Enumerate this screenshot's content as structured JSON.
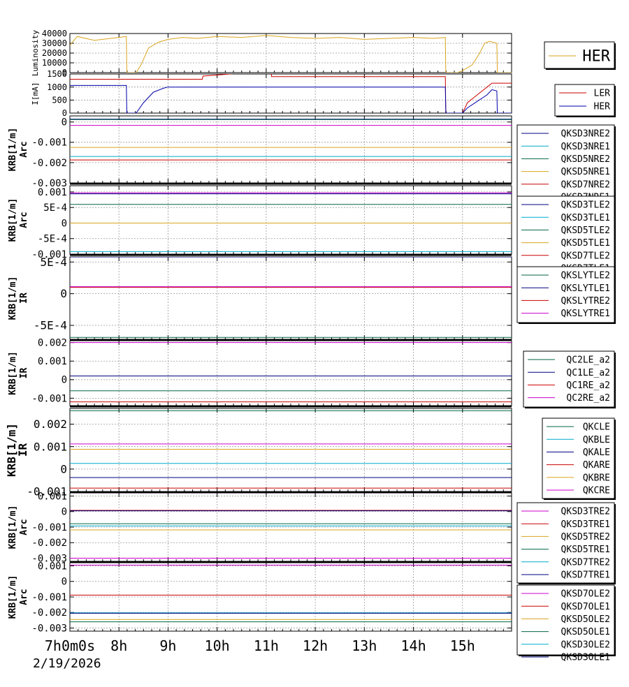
{
  "time_axis": {
    "start_label": "7h0m0s",
    "start_date": "2/19/2026",
    "ticks": [
      {
        "hour": 7,
        "label": "7h0m0s"
      },
      {
        "hour": 8,
        "label": "8h"
      },
      {
        "hour": 9,
        "label": "9h"
      },
      {
        "hour": 10,
        "label": "10h"
      },
      {
        "hour": 11,
        "label": "11h"
      },
      {
        "hour": 12,
        "label": "12h"
      },
      {
        "hour": 13,
        "label": "13h"
      },
      {
        "hour": 14,
        "label": "14h"
      },
      {
        "hour": 15,
        "label": "15h"
      }
    ],
    "range_hours": [
      7,
      16
    ]
  },
  "chart_data": [
    {
      "type": "line",
      "ylabel": "Luminosity",
      "ylim": [
        0,
        40000
      ],
      "yticks": [
        "40000",
        "30000",
        "20000",
        "10000",
        "0"
      ],
      "grid": true,
      "legend_position": "right",
      "series": [
        {
          "name": "HER",
          "color": "#daa520",
          "x": [
            7.0,
            7.15,
            7.5,
            8.0,
            8.15,
            8.16,
            8.35,
            8.45,
            8.6,
            8.8,
            9.0,
            9.3,
            9.6,
            10.0,
            10.5,
            11.0,
            11.5,
            12.0,
            12.5,
            13.0,
            13.5,
            14.0,
            14.4,
            14.65,
            14.66,
            14.9,
            15.0,
            15.2,
            15.35,
            15.45,
            15.55,
            15.7,
            15.71,
            16.0
          ],
          "y": [
            28000,
            37000,
            33000,
            36000,
            37000,
            0,
            0,
            8000,
            25000,
            31000,
            34000,
            36000,
            35000,
            37000,
            36000,
            38000,
            36000,
            35000,
            36000,
            34000,
            35000,
            36000,
            35000,
            36000,
            0,
            0,
            2000,
            8000,
            20000,
            30000,
            32000,
            30000,
            0,
            0
          ]
        }
      ]
    },
    {
      "type": "line",
      "ylabel": "I[mA]",
      "ylim": [
        0,
        1500
      ],
      "yticks": [
        "1500",
        "1000",
        "500",
        "0"
      ],
      "grid": true,
      "legend_position": "right",
      "series": [
        {
          "name": "LER",
          "color": "#cc0000",
          "x": [
            7.0,
            9.7,
            9.71,
            10.0,
            10.5,
            11.0,
            11.1,
            11.11,
            14.65,
            14.66,
            15.0,
            15.1,
            15.3,
            15.5,
            15.6,
            16.0
          ],
          "y": [
            1300,
            1300,
            1420,
            1460,
            1540,
            1600,
            1600,
            1400,
            1400,
            0,
            0,
            400,
            700,
            1000,
            1150,
            1150
          ]
        },
        {
          "name": "HER",
          "color": "#0000aa",
          "x": [
            7.0,
            8.15,
            8.16,
            8.35,
            8.5,
            8.7,
            8.9,
            9.0,
            9.5,
            10.0,
            11.0,
            12.0,
            13.0,
            14.0,
            14.65,
            14.66,
            15.0,
            15.1,
            15.3,
            15.5,
            15.6,
            15.7,
            15.71,
            16.0
          ],
          "y": [
            1060,
            1060,
            0,
            0,
            400,
            800,
            950,
            1000,
            1000,
            1000,
            1000,
            1000,
            1000,
            1000,
            1000,
            0,
            0,
            200,
            450,
            700,
            900,
            850,
            0,
            0
          ]
        }
      ]
    },
    {
      "type": "line",
      "ylabel": "KRB[1/m]",
      "ylabel2": "Arc",
      "ylim": [
        -0.003,
        0.0003
      ],
      "yticks": [
        "0",
        "-0.001",
        "-0.002",
        "-0.003"
      ],
      "grid": true,
      "legend_position": "right",
      "series": [
        {
          "name": "QKSD3NRE2",
          "color": "#000080",
          "y_const": 0.00014
        },
        {
          "name": "QKSD3NRE1",
          "color": "#00aacc",
          "y_const": -0.0017
        },
        {
          "name": "QKSD5NRE2",
          "color": "#006644",
          "y_const": 0.00012
        },
        {
          "name": "QKSD5NRE1",
          "color": "#daa520",
          "y_const": -0.00125
        },
        {
          "name": "QKSD7NRE2",
          "color": "#cc0000",
          "y_const": -0.00187
        },
        {
          "name": "QKSD7NRE1",
          "color": "#cc00cc",
          "y_const": -0.00017
        }
      ]
    },
    {
      "type": "line",
      "ylabel": "KRB[1/m]",
      "ylabel2": "Arc",
      "ylim": [
        -0.001,
        0.0012
      ],
      "yticks": [
        "0.001",
        "5E-4",
        "0",
        "-5E-4",
        "-0.001"
      ],
      "grid": true,
      "legend_position": "right",
      "series": [
        {
          "name": "QKSD3TLE2",
          "color": "#000080",
          "y_const": 0.00094
        },
        {
          "name": "QKSD3TLE1",
          "color": "#00aacc",
          "y_const": -0.00092
        },
        {
          "name": "QKSD5TLE2",
          "color": "#006644",
          "y_const": 0.0006
        },
        {
          "name": "QKSD5TLE1",
          "color": "#daa520",
          "y_const": 0.0
        },
        {
          "name": "QKSD7TLE2",
          "color": "#cc0000",
          "y_const": 0.0013
        },
        {
          "name": "QKSD7TLE1",
          "color": "#cc00cc",
          "y_const": 0.00097
        }
      ]
    },
    {
      "type": "line",
      "ylabel": "KRB[1/m]",
      "ylabel2": "IR",
      "ylim": [
        -0.00072,
        0.00058
      ],
      "yticks": [
        "5E-4",
        "0",
        "-5E-4"
      ],
      "grid": true,
      "legend_position": "right",
      "series": [
        {
          "name": "QKSLYTLE2",
          "color": "#006644",
          "y_const": -0.00069
        },
        {
          "name": "QKSLYTLE1",
          "color": "#000080",
          "y_const": 0.00058
        },
        {
          "name": "QKSLYTRE2",
          "color": "#cc0000",
          "y_const": 0.0001
        },
        {
          "name": "QKSLYTRE1",
          "color": "#cc00cc",
          "y_const": 0.00011
        }
      ]
    },
    {
      "type": "line",
      "ylabel": "KRB[1/m]",
      "ylabel2": "IR",
      "ylim": [
        -0.0014,
        0.0021
      ],
      "yticks": [
        "0.002",
        "0.001",
        "0",
        "-0.001"
      ],
      "grid": true,
      "legend_position": "right",
      "series": [
        {
          "name": "QC2LE_a2",
          "color": "#006644",
          "y_const": -0.0006
        },
        {
          "name": "QC1LE_a2",
          "color": "#000080",
          "y_const": 0.0002
        },
        {
          "name": "QC1RE_a2",
          "color": "#cc0000",
          "y_const": -0.0012
        },
        {
          "name": "QC2RE_a2",
          "color": "#cc00cc",
          "y_const": 0.002
        }
      ]
    },
    {
      "type": "line",
      "ylabel": "KRB[1/m]",
      "ylabel2": "IR",
      "ylim": [
        -0.001,
        0.0027
      ],
      "yticks": [
        "0.002",
        "0.001",
        "0",
        "-0.001"
      ],
      "grid": true,
      "legend_position": "right",
      "series": [
        {
          "name": "QKCLE",
          "color": "#006644",
          "y_const": 0.0026
        },
        {
          "name": "QKBLE",
          "color": "#00aacc",
          "y_const": 0.00025
        },
        {
          "name": "QKALE",
          "color": "#000080",
          "y_const": -0.00038
        },
        {
          "name": "QKARE",
          "color": "#cc0000",
          "y_const": -0.00085
        },
        {
          "name": "QKBRE",
          "color": "#daa520",
          "y_const": 0.00088
        },
        {
          "name": "QKCRE",
          "color": "#cc00cc",
          "y_const": 0.00112
        }
      ]
    },
    {
      "type": "line",
      "ylabel": "KRB[1/m]",
      "ylabel2": "Arc",
      "ylim": [
        -0.0032,
        0.0012
      ],
      "yticks": [
        "0.001",
        "0",
        "-0.001",
        "-0.002",
        "-0.003"
      ],
      "grid": true,
      "legend_position": "right",
      "series": [
        {
          "name": "QKSD3TRE2",
          "color": "#cc00cc",
          "y_const": -0.003
        },
        {
          "name": "QKSD3TRE1",
          "color": "#cc0000",
          "y_const": 8e-05
        },
        {
          "name": "QKSD5TRE2",
          "color": "#daa520",
          "y_const": -0.00118
        },
        {
          "name": "QKSD5TRE1",
          "color": "#006644",
          "y_const": -0.00078
        },
        {
          "name": "QKSD7TRE2",
          "color": "#00aacc",
          "y_const": -0.00092
        },
        {
          "name": "QKSD7TRE1",
          "color": "#000080",
          "y_const": 5e-05
        }
      ]
    },
    {
      "type": "line",
      "ylabel": "KRB[1/m]",
      "ylabel2": "Arc",
      "ylim": [
        -0.0032,
        0.0012
      ],
      "yticks": [
        "0.001",
        "0",
        "-0.001",
        "-0.002",
        "-0.003"
      ],
      "grid": true,
      "legend_position": "right",
      "series": [
        {
          "name": "QKSD7OLE2",
          "color": "#cc00cc",
          "y_const": 0.00105
        },
        {
          "name": "QKSD7OLE1",
          "color": "#cc0000",
          "y_const": -0.00088
        },
        {
          "name": "QKSD5OLE2",
          "color": "#daa520",
          "y_const": -0.00245
        },
        {
          "name": "QKSD5OLE1",
          "color": "#006644",
          "y_const": -0.0026
        },
        {
          "name": "QKSD3OLE2",
          "color": "#00aacc",
          "y_const": -0.00202
        },
        {
          "name": "QKSD3OLE1",
          "color": "#000080",
          "y_const": -0.00205
        }
      ]
    }
  ]
}
